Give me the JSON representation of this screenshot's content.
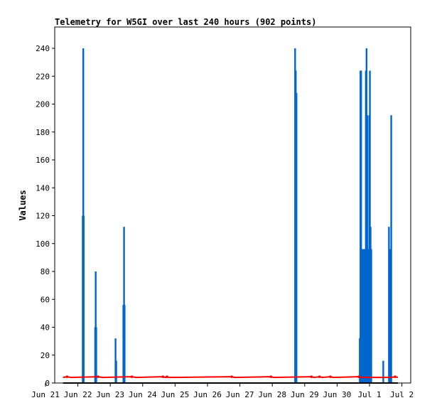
{
  "chart_data": {
    "type": "bar",
    "title": "Telemetry for W5GI over last 240 hours (902 points)",
    "xlabel": "",
    "ylabel": "Values",
    "ylim": [
      0,
      260
    ],
    "xlim_hours": [
      0,
      240
    ],
    "grid": false,
    "yticks": [
      0,
      20,
      40,
      60,
      80,
      100,
      120,
      140,
      160,
      180,
      200,
      220,
      240
    ],
    "xticks": [
      {
        "label": "Jun 21",
        "hour": 0
      },
      {
        "label": "Jun 22",
        "hour": 24
      },
      {
        "label": "Jun 23",
        "hour": 48
      },
      {
        "label": "Jun 24",
        "hour": 72
      },
      {
        "label": "Jun 25",
        "hour": 96
      },
      {
        "label": "Jun 26",
        "hour": 120
      },
      {
        "label": "Jun 27",
        "hour": 144
      },
      {
        "label": "Jun 28",
        "hour": 168
      },
      {
        "label": "Jun 29",
        "hour": 192
      },
      {
        "label": "Jun 30",
        "hour": 216
      },
      {
        "label": "Jul 1",
        "hour": 240
      },
      {
        "label": "Jul 2",
        "hour": 264
      }
    ],
    "series": [
      {
        "color": "#0066cc",
        "style": "bars",
        "points": [
          {
            "hour": 27.6,
            "value": 120
          },
          {
            "hour": 28.0,
            "value": 240
          },
          {
            "hour": 28.3,
            "value": 120
          },
          {
            "hour": 36.8,
            "value": 40
          },
          {
            "hour": 37.2,
            "value": 80
          },
          {
            "hour": 37.6,
            "value": 40
          },
          {
            "hour": 51.9,
            "value": 32
          },
          {
            "hour": 52.4,
            "value": 16
          },
          {
            "hour": 57.7,
            "value": 56
          },
          {
            "hour": 58.2,
            "value": 112
          },
          {
            "hour": 58.6,
            "value": 56
          },
          {
            "hour": 184.9,
            "value": 240
          },
          {
            "hour": 185.4,
            "value": 224
          },
          {
            "hour": 185.9,
            "value": 208
          },
          {
            "hour": 232.8,
            "value": 32
          },
          {
            "hour": 233.3,
            "value": 224
          },
          {
            "hour": 233.8,
            "value": 224
          },
          {
            "hour": 234.3,
            "value": 96
          },
          {
            "hour": 234.8,
            "value": 96
          },
          {
            "hour": 235.3,
            "value": 96
          },
          {
            "hour": 235.8,
            "value": 96
          },
          {
            "hour": 236.3,
            "value": 96
          },
          {
            "hour": 236.8,
            "value": 96
          },
          {
            "hour": 237.3,
            "value": 224
          },
          {
            "hour": 237.8,
            "value": 240
          },
          {
            "hour": 238.3,
            "value": 192
          },
          {
            "hour": 238.8,
            "value": 96
          },
          {
            "hour": 239.3,
            "value": 48
          },
          {
            "hour": 239.8,
            "value": 192
          },
          {
            "hour": 240.3,
            "value": 224
          },
          {
            "hour": 240.8,
            "value": 112
          },
          {
            "hour": 241.3,
            "value": 96
          },
          {
            "hour": 250.2,
            "value": 16
          },
          {
            "hour": 254.4,
            "value": 112
          },
          {
            "hour": 255.6,
            "value": 96
          },
          {
            "hour": 256.1,
            "value": 192
          }
        ]
      },
      {
        "color": "#ff0000",
        "style": "line",
        "points": [
          {
            "hour": 13,
            "value": 4
          },
          {
            "hour": 16,
            "value": 4.5
          },
          {
            "hour": 19,
            "value": 4
          },
          {
            "hour": 39,
            "value": 4.5
          },
          {
            "hour": 42,
            "value": 4
          },
          {
            "hour": 64,
            "value": 4.5
          },
          {
            "hour": 67,
            "value": 4
          },
          {
            "hour": 87,
            "value": 4.5
          },
          {
            "hour": 89,
            "value": 4
          },
          {
            "hour": 90,
            "value": 4.5
          },
          {
            "hour": 91,
            "value": 4
          },
          {
            "hour": 138,
            "value": 4.5
          },
          {
            "hour": 140,
            "value": 4
          },
          {
            "hour": 167,
            "value": 4.5
          },
          {
            "hour": 169,
            "value": 4
          },
          {
            "hour": 197,
            "value": 4.5
          },
          {
            "hour": 199,
            "value": 4
          },
          {
            "hour": 203,
            "value": 4.5
          },
          {
            "hour": 205,
            "value": 4
          },
          {
            "hour": 211,
            "value": 4.5
          },
          {
            "hour": 213,
            "value": 4
          },
          {
            "hour": 232,
            "value": 4.5
          },
          {
            "hour": 234,
            "value": 4
          },
          {
            "hour": 256,
            "value": 4
          },
          {
            "hour": 259,
            "value": 4.5
          },
          {
            "hour": 261,
            "value": 4
          }
        ]
      },
      {
        "color": "#000000",
        "style": "line",
        "points": [
          {
            "hour": 13,
            "value": 0
          },
          {
            "hour": 261,
            "value": 0
          }
        ]
      }
    ]
  }
}
